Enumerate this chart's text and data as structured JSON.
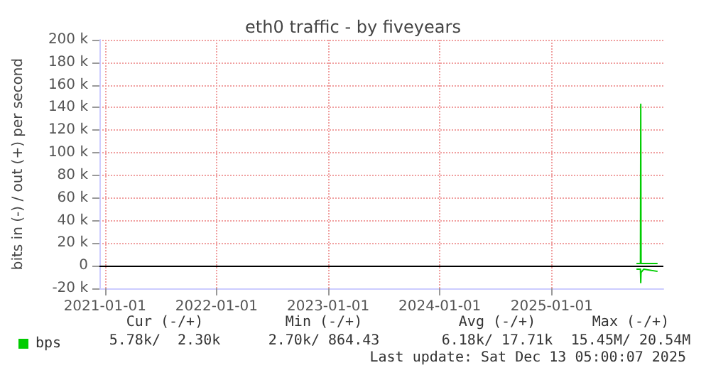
{
  "chart_data": {
    "type": "line",
    "title": "eth0 traffic - by fiveyears",
    "ylabel": "bits in (-) / out (+) per second",
    "x": [
      "2025-10-05",
      "2025-10-18",
      "2025-10-19",
      "2025-10-20",
      "2025-10-29",
      "2025-12-13"
    ],
    "series": [
      {
        "name": "bps",
        "color": "#00cc00",
        "values": [
          2000,
          2000,
          143000,
          2000,
          2000,
          2000
        ]
      },
      {
        "color": "#00cc00",
        "values": [
          -3000,
          -3000,
          -15000,
          -6000,
          -3000,
          -5000
        ]
      }
    ],
    "xlim": [
      "2020-12-14",
      "2026-01-01"
    ],
    "xticks": [
      "2021-01-01",
      "2022-01-01",
      "2023-01-01",
      "2024-01-01",
      "2025-01-01"
    ],
    "ylim": [
      -20000,
      200000
    ],
    "yticks": [
      {
        "value": -20000,
        "label": "-20 k"
      },
      0,
      {
        "value": 20000,
        "label": "20 k"
      },
      {
        "value": 40000,
        "label": "40 k"
      },
      {
        "value": 60000,
        "label": "60 k"
      },
      {
        "value": 80000,
        "label": "80 k"
      },
      {
        "value": 100000,
        "label": "100 k"
      },
      {
        "value": 120000,
        "label": "120 k"
      },
      {
        "value": 140000,
        "label": "140 k"
      },
      {
        "value": 160000,
        "label": "160 k"
      },
      {
        "value": 180000,
        "label": "180 k"
      },
      {
        "value": 200000,
        "label": "200 k"
      }
    ],
    "ref_lines": [
      {
        "axis": "y",
        "value": 0,
        "color": "#000000"
      }
    ],
    "grid": true,
    "legend": "bottom left",
    "marker": "none",
    "line_style": "solid",
    "annotations": [
      "Cur (-/+)",
      "Min (-/+)",
      "Avg (-/+)",
      "Max (-/+)",
      "5.78k/  2.30k",
      "2.70k/ 864.43",
      "6.18k/ 17.71k",
      "15.45M/ 20.54M",
      "Last update: Sat Dec 13 05:00:07 2025"
    ]
  }
}
